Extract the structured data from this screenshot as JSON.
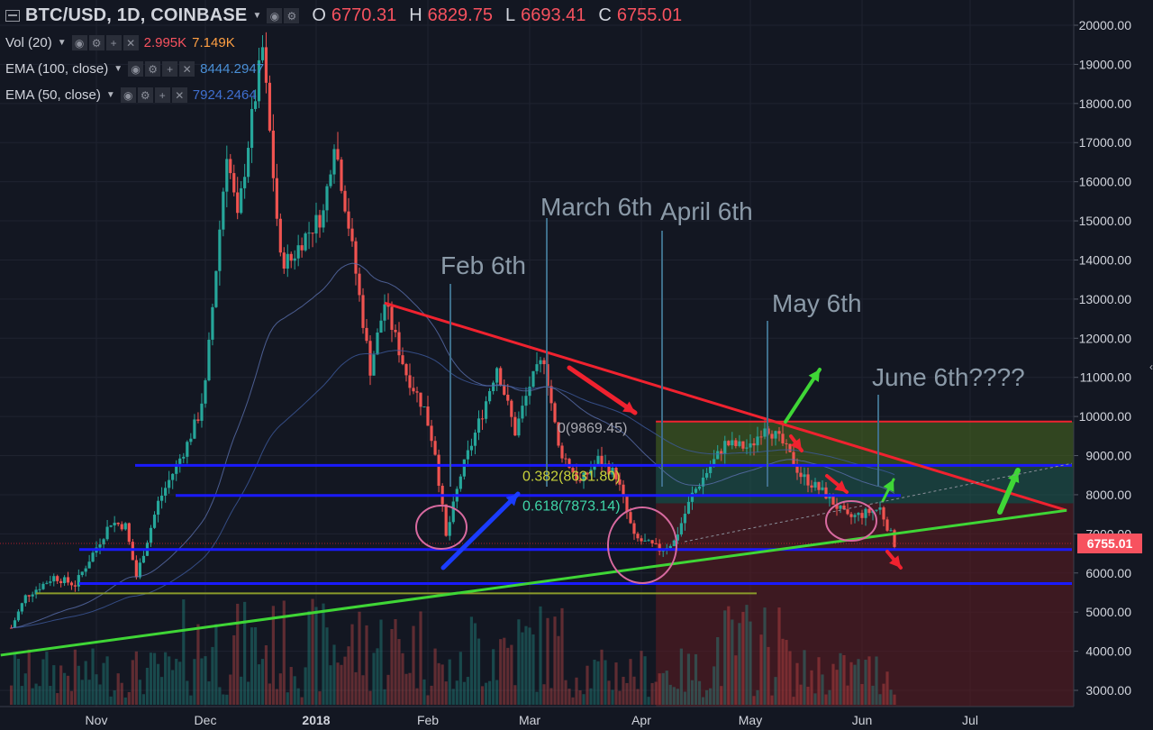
{
  "header": {
    "symbol": "BTC/USD, 1D, COINBASE",
    "open_label": "O",
    "open": "6770.31",
    "high_label": "H",
    "high": "6829.75",
    "low_label": "L",
    "low": "6693.41",
    "close_label": "C",
    "close": "6755.01"
  },
  "indicators": {
    "vol": {
      "label": "Vol (20)",
      "value1": "2.995K",
      "value2": "7.149K"
    },
    "ema100": {
      "label": "EMA (100, close)",
      "value": "8444.2947"
    },
    "ema50": {
      "label": "EMA (50, close)",
      "value": "7924.2464"
    }
  },
  "colors": {
    "background": "#131722",
    "up": "#26a69a",
    "down": "#ef5350",
    "trend_red": "#f0222f",
    "trend_green": "#3fd636",
    "support_blue": "#1a1aff"
  },
  "chart_data": {
    "type": "candlestick",
    "symbol": "BTC/USD",
    "interval": "1D",
    "exchange": "COINBASE",
    "last_price": "6755.01",
    "y_axis": {
      "ylim": [
        2700,
        20400
      ],
      "ticks": [
        "3000.00",
        "4000.00",
        "5000.00",
        "6000.00",
        "7000.00",
        "8000.00",
        "9000.00",
        "10000.00",
        "11000.00",
        "12000.00",
        "13000.00",
        "14000.00",
        "15000.00",
        "16000.00",
        "17000.00",
        "18000.00",
        "19000.00",
        "20000.00"
      ]
    },
    "x_axis": {
      "ticks": [
        {
          "label": "Nov",
          "date": "2017-11-01"
        },
        {
          "label": "Dec",
          "date": "2017-12-01"
        },
        {
          "label": "2018",
          "date": "2018-01-01"
        },
        {
          "label": "Feb",
          "date": "2018-02-01"
        },
        {
          "label": "Mar",
          "date": "2018-03-01"
        },
        {
          "label": "Apr",
          "date": "2018-04-01"
        },
        {
          "label": "May",
          "date": "2018-05-01"
        },
        {
          "label": "Jun",
          "date": "2018-06-01"
        },
        {
          "label": "Jul",
          "date": "2018-07-01"
        }
      ]
    },
    "price_path": [
      [
        "2017-10-08",
        4600
      ],
      [
        "2017-10-12",
        5400
      ],
      [
        "2017-10-20",
        5900
      ],
      [
        "2017-10-26",
        5700
      ],
      [
        "2017-11-05",
        7300
      ],
      [
        "2017-11-09",
        7200
      ],
      [
        "2017-11-12",
        5900
      ],
      [
        "2017-11-18",
        7800
      ],
      [
        "2017-11-26",
        9300
      ],
      [
        "2017-11-29",
        10000
      ],
      [
        "2017-12-01",
        10800
      ],
      [
        "2017-12-07",
        16800
      ],
      [
        "2017-12-10",
        15000
      ],
      [
        "2017-12-13",
        17000
      ],
      [
        "2017-12-17",
        19400
      ],
      [
        "2017-12-22",
        14000
      ],
      [
        "2017-12-25",
        14000
      ],
      [
        "2017-12-28",
        14500
      ],
      [
        "2018-01-03",
        15200
      ],
      [
        "2018-01-06",
        17100
      ],
      [
        "2018-01-10",
        14900
      ],
      [
        "2018-01-16",
        11200
      ],
      [
        "2018-01-20",
        12900
      ],
      [
        "2018-01-26",
        11100
      ],
      [
        "2018-01-31",
        10200
      ],
      [
        "2018-02-03",
        9100
      ],
      [
        "2018-02-06",
        6900
      ],
      [
        "2018-02-10",
        8500
      ],
      [
        "2018-02-16",
        10100
      ],
      [
        "2018-02-20",
        11300
      ],
      [
        "2018-02-25",
        9600
      ],
      [
        "2018-03-01",
        10800
      ],
      [
        "2018-03-05",
        11500
      ],
      [
        "2018-03-09",
        9200
      ],
      [
        "2018-03-15",
        8300
      ],
      [
        "2018-03-20",
        8900
      ],
      [
        "2018-03-25",
        8500
      ],
      [
        "2018-03-30",
        6900
      ],
      [
        "2018-04-06",
        6600
      ],
      [
        "2018-04-10",
        6800
      ],
      [
        "2018-04-15",
        8000
      ],
      [
        "2018-04-24",
        9300
      ],
      [
        "2018-05-01",
        9200
      ],
      [
        "2018-05-05",
        9800
      ],
      [
        "2018-05-10",
        9300
      ],
      [
        "2018-05-15",
        8500
      ],
      [
        "2018-05-22",
        8000
      ],
      [
        "2018-05-28",
        7400
      ],
      [
        "2018-06-01",
        7500
      ],
      [
        "2018-06-06",
        7650
      ],
      [
        "2018-06-10",
        6755
      ]
    ],
    "indicators": [
      {
        "name": "EMA (100, close)",
        "value": 8444.2947
      },
      {
        "name": "EMA (50, close)",
        "value": 7924.2464
      },
      {
        "name": "Vol (20)",
        "values": [
          "2.995K",
          "7.149K"
        ]
      }
    ],
    "annotations": [
      {
        "text": "Feb 6th",
        "date": "2018-02-06"
      },
      {
        "text": "March 6th",
        "date": "2018-03-06"
      },
      {
        "text": "April 6th",
        "date": "2018-04-06"
      },
      {
        "text": "May 6th",
        "date": "2018-05-06"
      },
      {
        "text": "June 6th????",
        "date": "2018-06-06"
      }
    ],
    "fibonacci": [
      {
        "label": "0(9869.45)",
        "level": 0,
        "price": 9869.45
      },
      {
        "label": "0.382(8631.80)",
        "level": 0.382,
        "price": 8631.8
      },
      {
        "label": "0.618(7873.14)",
        "level": 0.618,
        "price": 7873.14
      }
    ],
    "trendlines": [
      {
        "color": "red",
        "from": [
          "2018-01-20",
          12900
        ],
        "to": [
          "2018-07-28",
          7600
        ]
      },
      {
        "color": "green",
        "from": [
          "2017-10-05",
          3900
        ],
        "to": [
          "2018-07-28",
          7600
        ]
      }
    ],
    "horizontal_lines": [
      8750,
      7980,
      6600,
      5730,
      5480,
      9870
    ]
  }
}
